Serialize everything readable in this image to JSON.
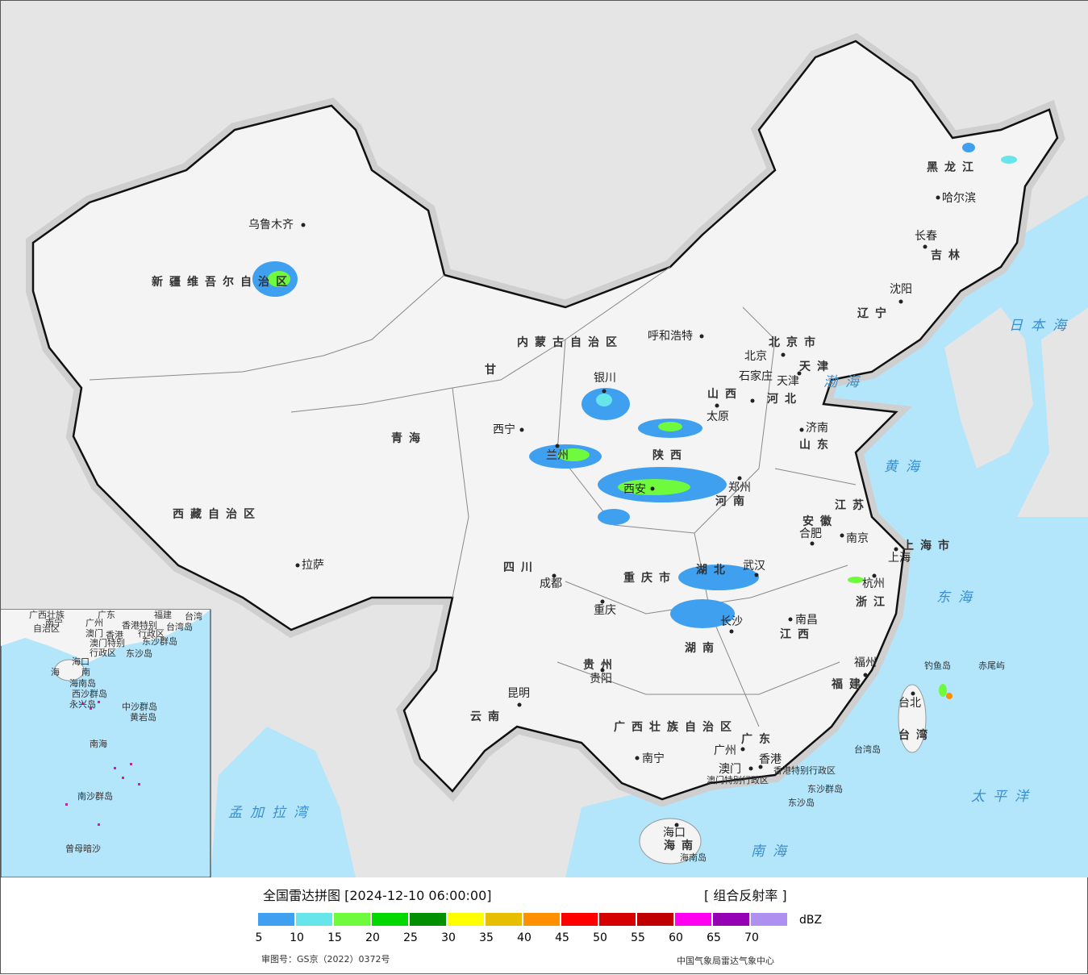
{
  "map": {
    "provinces": [
      "新疆维吾尔自治区",
      "西藏自治区",
      "青海",
      "甘",
      "内蒙古自治区",
      "黑龙江",
      "吉林",
      "辽宁",
      "河北",
      "山西",
      "陕西",
      "山东",
      "河南",
      "江苏",
      "安徽",
      "湖北",
      "四川",
      "重庆市",
      "贵州",
      "云南",
      "湖南",
      "江西",
      "浙江",
      "福建",
      "广西壮族自治区",
      "广东",
      "海南",
      "台湾",
      "上海市",
      "北京市",
      "天津"
    ],
    "cities": [
      "乌鲁木齐",
      "拉萨",
      "西宁",
      "兰州",
      "银川",
      "呼和浩特",
      "北京",
      "天津",
      "石家庄",
      "太原",
      "济南",
      "郑州",
      "西安",
      "成都",
      "重庆",
      "贵阳",
      "昆明",
      "武汉",
      "长沙",
      "南昌",
      "合肥",
      "南京",
      "上海",
      "杭州",
      "福州",
      "台北",
      "南宁",
      "广州",
      "澳门",
      "香港",
      "海口",
      "哈尔滨",
      "长春",
      "沈阳"
    ],
    "seas": [
      "日本海",
      "渤海",
      "黄海",
      "东海",
      "太平洋",
      "南海",
      "孟加拉湾"
    ],
    "islands": [
      "钓鱼岛",
      "赤尾屿",
      "台湾岛",
      "东沙群岛",
      "东沙岛",
      "海南岛",
      "香港特别行政区",
      "澳门特别行政区"
    ],
    "inset": {
      "labels": [
        "广西壮族",
        "自治区",
        "南宁",
        "广东",
        "广州",
        "澳门",
        "香港",
        "香港特别",
        "行政区",
        "澳门特别",
        "行政区",
        "东沙群岛",
        "东沙岛",
        "台湾",
        "台湾岛",
        "海口",
        "海",
        "南",
        "海南岛",
        "西沙群岛",
        "永兴岛",
        "中沙群岛",
        "黄岩岛",
        "南海",
        "南沙群岛",
        "曾母暗沙",
        "福建"
      ]
    }
  },
  "legend": {
    "title": "全国雷达拼图 [2024-12-10 06:00:00]",
    "product": "[ 组合反射率 ]",
    "unit": "dBZ",
    "ticks": [
      "5",
      "10",
      "15",
      "20",
      "25",
      "30",
      "35",
      "40",
      "45",
      "50",
      "55",
      "60",
      "65",
      "70"
    ],
    "colors": [
      "#40a0f0",
      "#66e6ea",
      "#70fa3e",
      "#00d800",
      "#009000",
      "#ffff00",
      "#e6c000",
      "#ff9000",
      "#ff0000",
      "#d60000",
      "#c00000",
      "#ff00f0",
      "#9600b4",
      "#ad90f0"
    ],
    "approval": "审图号：GS京（2022）0372号",
    "source": "中国气象局雷达气象中心"
  },
  "colors": {
    "sea": "#b3e5fb",
    "land": "#e5e5e5",
    "china": "#f4f4f4",
    "border": "#111111"
  }
}
